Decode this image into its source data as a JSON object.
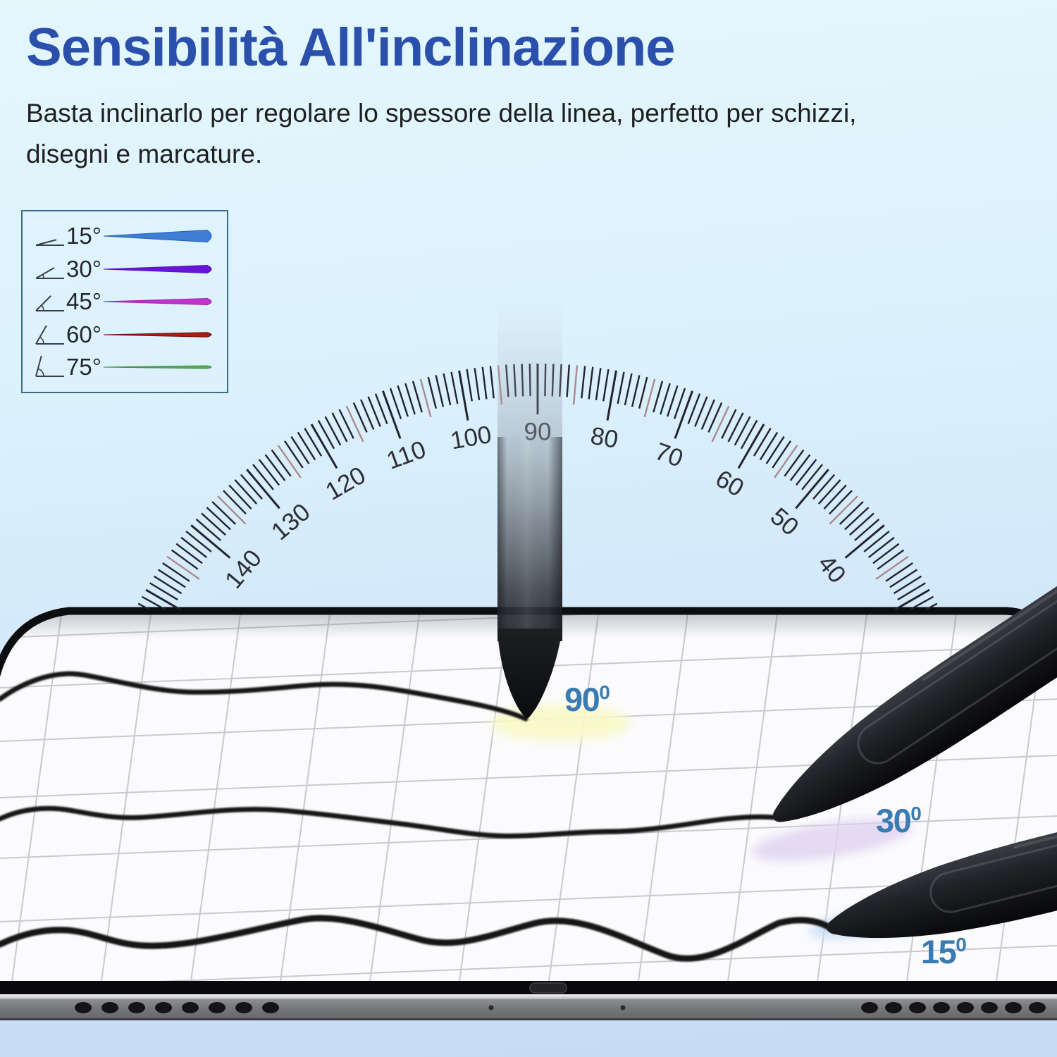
{
  "title": "Sensibilità All'inclinazione",
  "subtitle": {
    "line1": "Basta inclinarlo per regolare lo spessore della linea, perfetto per schizzi,",
    "line2": "disegni e marcature."
  },
  "legend": {
    "rows": [
      {
        "label": "15°",
        "angle_deg": 15,
        "line_color": "#3e7ed4",
        "line_edge": "#2e62b4",
        "thickness": 17
      },
      {
        "label": "30°",
        "angle_deg": 30,
        "line_color": "#6a14d8",
        "line_edge": "#5510b0",
        "thickness": 11
      },
      {
        "label": "45°",
        "angle_deg": 45,
        "line_color": "#c233cc",
        "line_edge": "#a021aa",
        "thickness": 9
      },
      {
        "label": "60°",
        "angle_deg": 60,
        "line_color": "#a81e14",
        "line_edge": "#6d120c",
        "thickness": 6.5
      },
      {
        "label": "75°",
        "angle_deg": 75,
        "line_color": "#57aa58",
        "line_edge": "#3f8f42",
        "thickness": 4
      }
    ]
  },
  "protractor": {
    "label_values": [
      40,
      50,
      60,
      70,
      80,
      90,
      100,
      110,
      120,
      130,
      140
    ],
    "tick_min": 27,
    "tick_max": 153,
    "tick_step": 1,
    "tick_color": "#23232d",
    "mid_tick_color": "#ab8a8a",
    "label_color": "#2e2e36"
  },
  "angle_markers": [
    {
      "id": "90",
      "num": "90",
      "sup": "0",
      "angle_deg": 90
    },
    {
      "id": "30",
      "num": "30",
      "sup": "0",
      "angle_deg": 30
    },
    {
      "id": "15",
      "num": "15",
      "sup": "0",
      "angle_deg": 15
    }
  ],
  "colors": {
    "title": "#2b50ac",
    "subtitle_text": "#1f1f1f",
    "marker_blue": "#3a7cb1",
    "legend_border": "#3e6b85",
    "legend_text": "#24282c",
    "background_top": "#e2f6fd",
    "background_bottom": "#c6daf4",
    "surface": "#fbfbfd",
    "grid_line": "#c7c9cd",
    "pen_black": "#121418",
    "glow_yellow": "#f8f8c6",
    "glow_purple": "#e2d2f0",
    "glow_blue": "#c5ddf4"
  }
}
